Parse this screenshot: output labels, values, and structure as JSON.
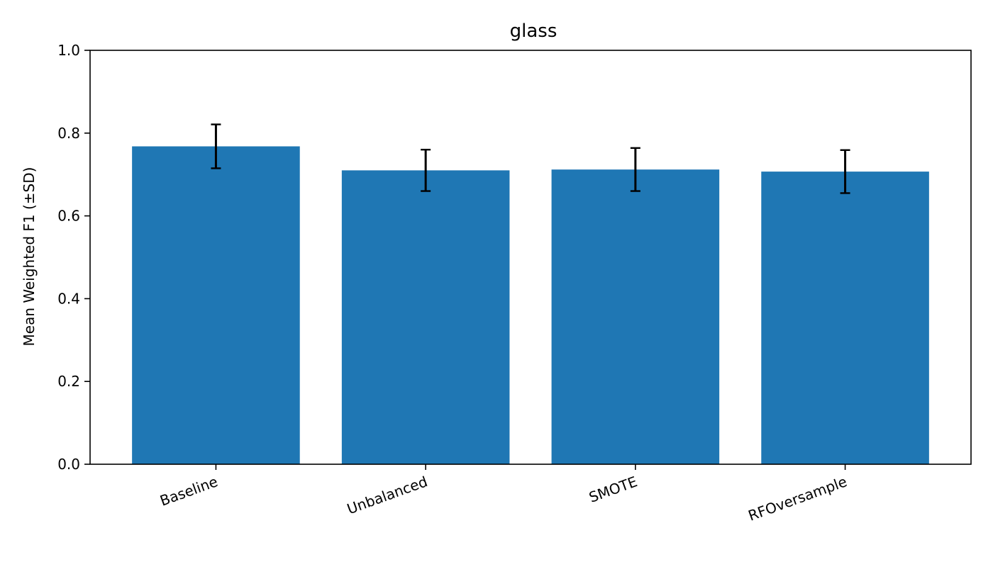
{
  "chart_data": {
    "type": "bar",
    "title": "glass",
    "xlabel": "",
    "ylabel": "Mean Weighted F1 (±SD)",
    "categories": [
      "Baseline",
      "Unbalanced",
      "SMOTE",
      "RFOversample"
    ],
    "values": [
      0.768,
      0.71,
      0.712,
      0.707
    ],
    "errors": [
      0.053,
      0.05,
      0.052,
      0.052
    ],
    "ylim": [
      0,
      1.0
    ],
    "yticks": [
      0.0,
      0.2,
      0.4,
      0.6,
      0.8,
      1.0
    ],
    "ytick_labels": [
      "0.0",
      "0.2",
      "0.4",
      "0.6",
      "0.8",
      "1.0"
    ],
    "grid": false,
    "bar_color": "#1f77b4",
    "error_color": "#000000"
  }
}
